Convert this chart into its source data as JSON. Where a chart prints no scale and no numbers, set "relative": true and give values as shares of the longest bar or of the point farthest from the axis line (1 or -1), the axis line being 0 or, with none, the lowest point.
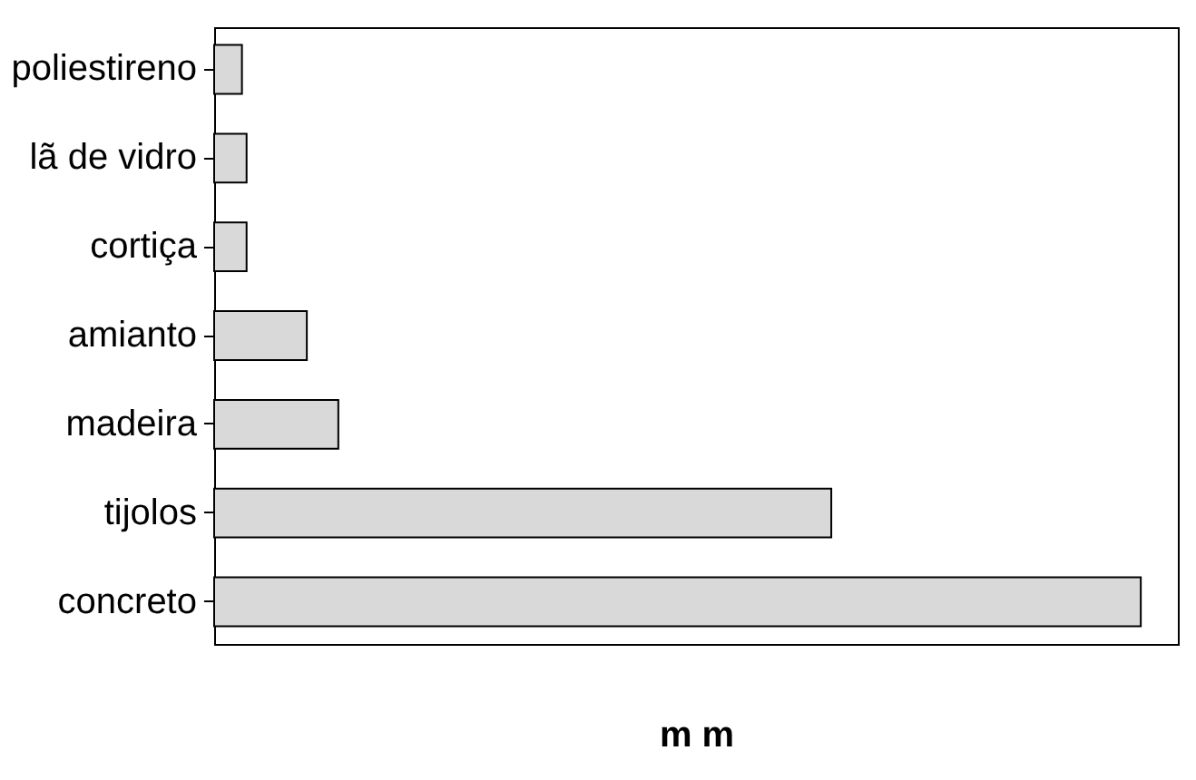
{
  "chart_data": {
    "type": "bar",
    "orientation": "horizontal",
    "relative": true,
    "xlabel": "m m",
    "categories": [
      "poliestireno",
      "lã de vidro",
      "cortiça",
      "amianto",
      "madeira",
      "tijolos",
      "concreto"
    ],
    "values": [
      0.03,
      0.035,
      0.035,
      0.1,
      0.134,
      0.666,
      1
    ],
    "color": "#d9d9d9"
  }
}
